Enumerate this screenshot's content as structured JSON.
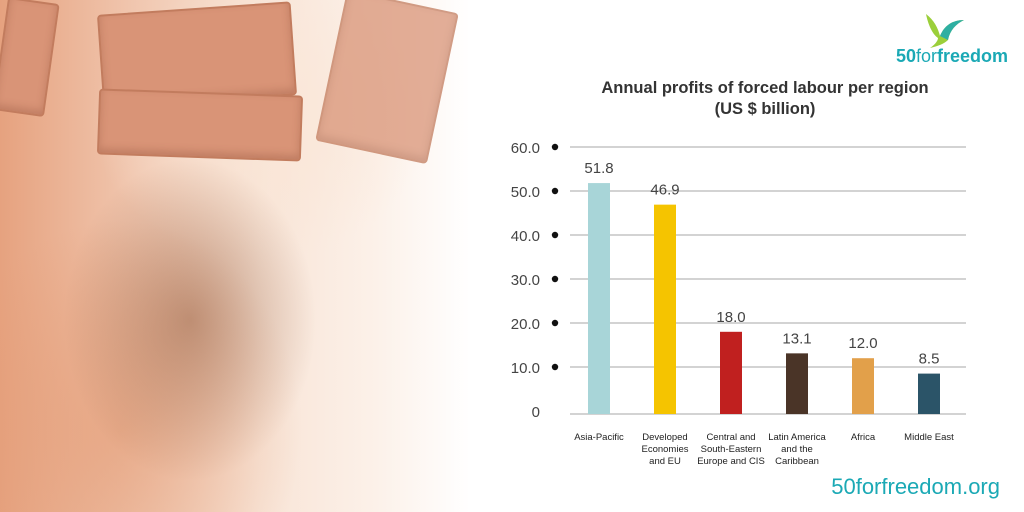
{
  "logo": {
    "number": "50",
    "mid": "for",
    "end": "freedom"
  },
  "site_url": "50forfreedom.org",
  "chart_data": {
    "type": "bar",
    "title": "Annual profits of forced labour per region",
    "subtitle": "(US $ billion)",
    "categories": [
      "Asia-Pacific",
      "Developed Economies and EU",
      "Central and South-Eastern Europe and CIS",
      "Latin America and the Caribbean",
      "Africa",
      "Middle East"
    ],
    "category_lines": [
      [
        "Asia-Pacific"
      ],
      [
        "Developed",
        "Economies",
        "and EU"
      ],
      [
        "Central and",
        "South-Eastern",
        "Europe and CIS"
      ],
      [
        "Latin America",
        "and the",
        "Caribbean"
      ],
      [
        "Africa"
      ],
      [
        "Middle East"
      ]
    ],
    "values": [
      51.8,
      46.9,
      18.0,
      13.1,
      12.0,
      8.5
    ],
    "value_labels": [
      "51.8",
      "46.9",
      "18.0",
      "13.1",
      "12.0",
      "8.5"
    ],
    "colors": [
      "#a8d5d8",
      "#f5c400",
      "#c0201f",
      "#4a3427",
      "#e2a04a",
      "#2b5468"
    ],
    "yticks": [
      0,
      10,
      20,
      30,
      40,
      50,
      60
    ],
    "ytick_labels": [
      "0",
      "10.0",
      "20.0",
      "30.0",
      "40.0",
      "50.0",
      "60.0"
    ],
    "ylim": [
      0,
      60
    ],
    "grid": true,
    "legend": "none"
  }
}
